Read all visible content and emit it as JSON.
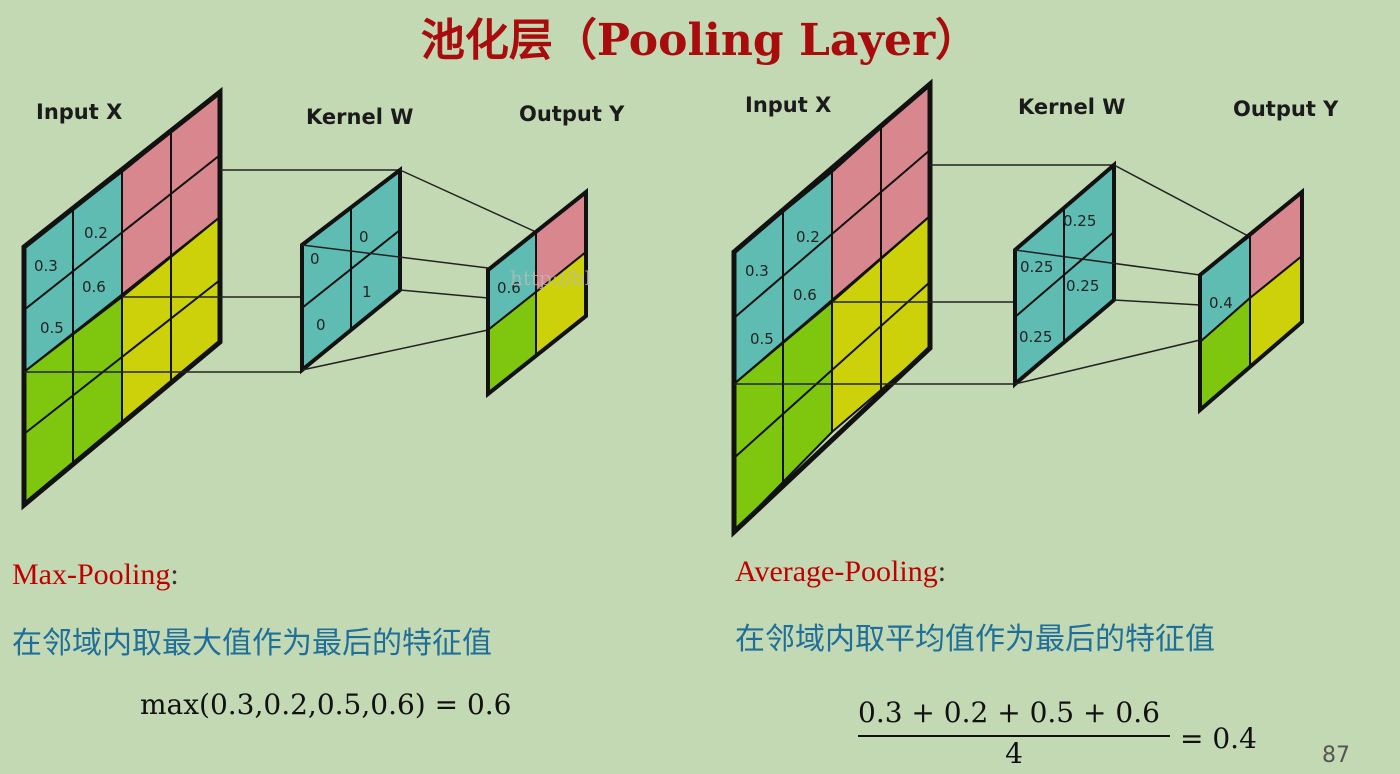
{
  "title": "池化层（Pooling Layer）",
  "watermark": "http://bl",
  "left_diagram": {
    "input_label": "Input X",
    "kernel_label": "Kernel W",
    "output_label": "Output Y",
    "input_values": [
      "0.2",
      "0.3",
      "0.6",
      "0.5"
    ],
    "kernel_values": [
      "0",
      "0",
      "1",
      "0"
    ],
    "output_value": "0.6"
  },
  "right_diagram": {
    "input_label": "Input X",
    "kernel_label": "Kernel W",
    "output_label": "Output Y",
    "input_values": [
      "0.2",
      "0.3",
      "0.6",
      "0.5"
    ],
    "kernel_values": [
      "0.25",
      "0.25",
      "0.25",
      "0.25"
    ],
    "output_value": "0.4"
  },
  "colors": {
    "teal": "#5fbcb3",
    "pink": "#d9878e",
    "yellow": "#cdd10a",
    "green": "#7ec70e",
    "title": "#a80c0c",
    "method": "#c00000",
    "desc": "#1f6f9a"
  },
  "max_pooling": {
    "name": "Max-Pooling",
    "colon": ":",
    "description": "在邻域内取最大值作为最后的特征值",
    "formula": "max(0.3,0.2,0.5,0.6) = 0.6"
  },
  "average_pooling": {
    "name": "Average-Pooling",
    "colon": ":",
    "description": "在邻域内取平均值作为最后的特征值",
    "numerator": "0.3 + 0.2 + 0.5 + 0.6",
    "denominator": "4",
    "result": "= 0.4"
  },
  "page_number": "87"
}
